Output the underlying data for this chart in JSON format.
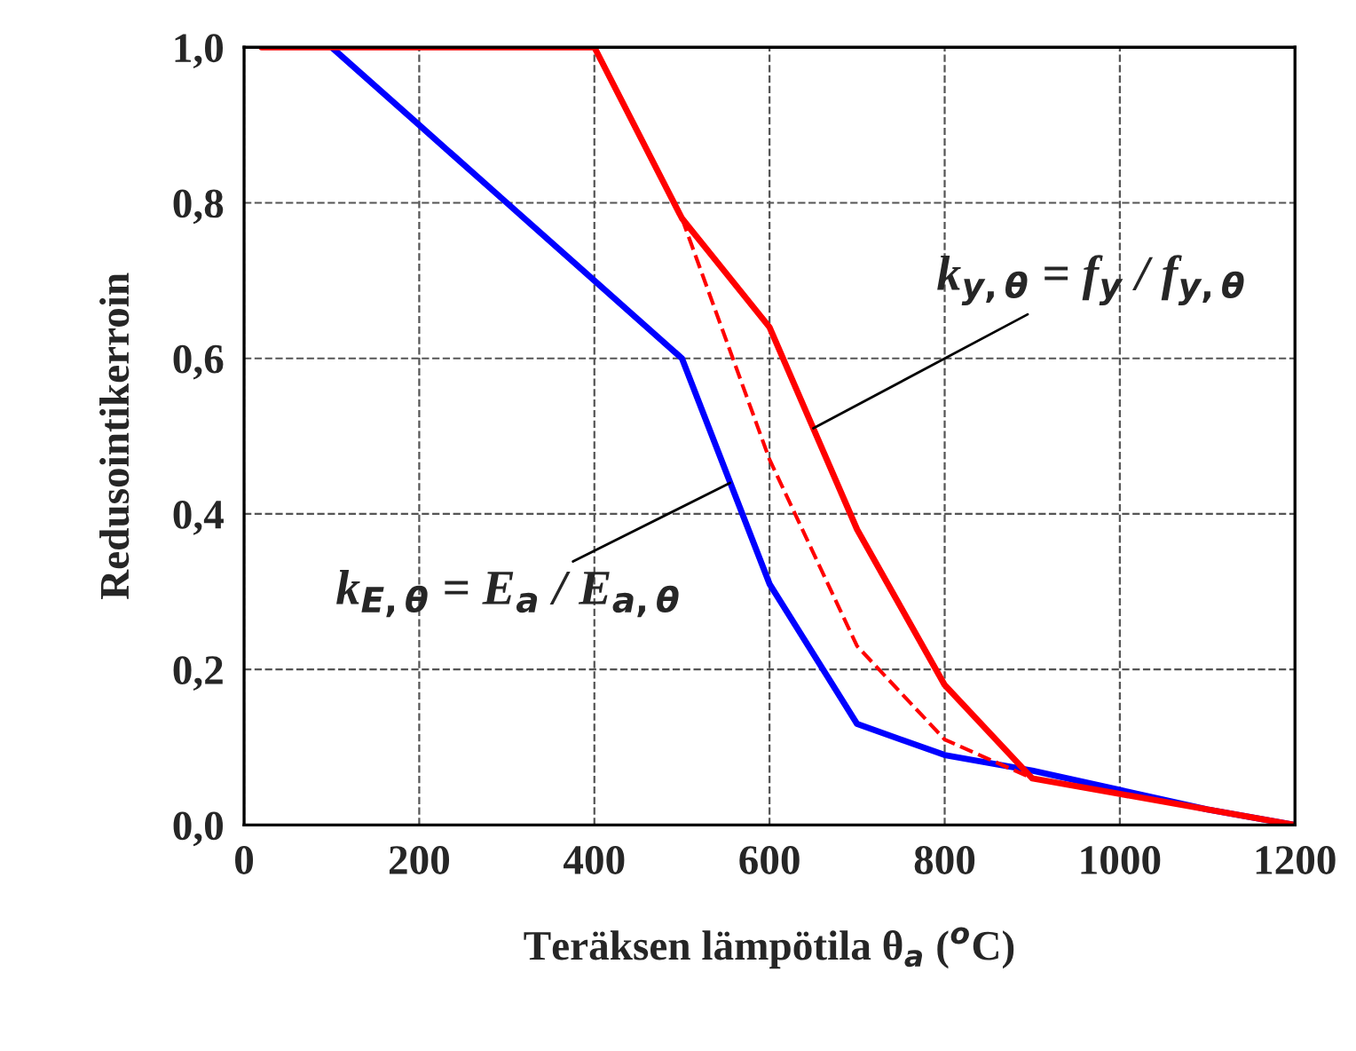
{
  "chart_data": {
    "type": "line",
    "xlabel": "Teräksen lämpötila θ$_{a}$ ($^{o}$C)",
    "ylabel": "Redusointikerroin",
    "series": [
      {
        "color": "#0000ff",
        "line_style": "solid",
        "x": [
          100,
          200,
          300,
          400,
          500,
          600,
          700,
          800,
          900,
          1000,
          1100,
          1200
        ],
        "values": [
          1.0,
          0.9,
          0.8,
          0.7,
          0.6,
          0.31,
          0.13,
          0.09,
          0.07,
          0.045,
          0.02,
          0.0
        ]
      },
      {
        "color": "#ff0000",
        "line_style": "solid",
        "x": [
          20,
          100,
          200,
          300,
          400,
          500,
          600,
          700,
          800,
          900,
          1000,
          1100,
          1200
        ],
        "values": [
          1.0,
          1.0,
          1.0,
          1.0,
          1.0,
          0.78,
          0.64,
          0.38,
          0.18,
          0.06,
          0.04,
          0.02,
          0.0
        ]
      },
      {
        "color": "#ff0000",
        "line_style": "dashed",
        "x": [
          500,
          600,
          700,
          800,
          900
        ],
        "values": [
          0.78,
          0.47,
          0.23,
          0.11,
          0.06
        ]
      }
    ],
    "xlim": [
      0,
      1200
    ],
    "ylim": [
      0,
      1.0
    ],
    "xticks": [
      0,
      200,
      400,
      600,
      800,
      1000,
      1200
    ],
    "yticks": [
      {
        "value": 0,
        "label": "0,0"
      },
      {
        "value": 0.2,
        "label": "0,2"
      },
      {
        "value": 0.4,
        "label": "0,4"
      },
      {
        "value": 0.6,
        "label": "0,6"
      },
      {
        "value": 0.8,
        "label": "0,8"
      },
      {
        "value": 1.0,
        "label": "1,0"
      }
    ],
    "grid": true,
    "legend": false,
    "marker": "none",
    "annotations": [
      {
        "text": "k$_{y,θ}$ = f$_{y}$ / f$_{y,θ}$",
        "x": 650,
        "y": 0.51
      },
      {
        "text": "k$_{E,θ}$ = E$_{a}$ / E$_{a,θ}$",
        "x": 555,
        "y": 0.44
      }
    ]
  }
}
